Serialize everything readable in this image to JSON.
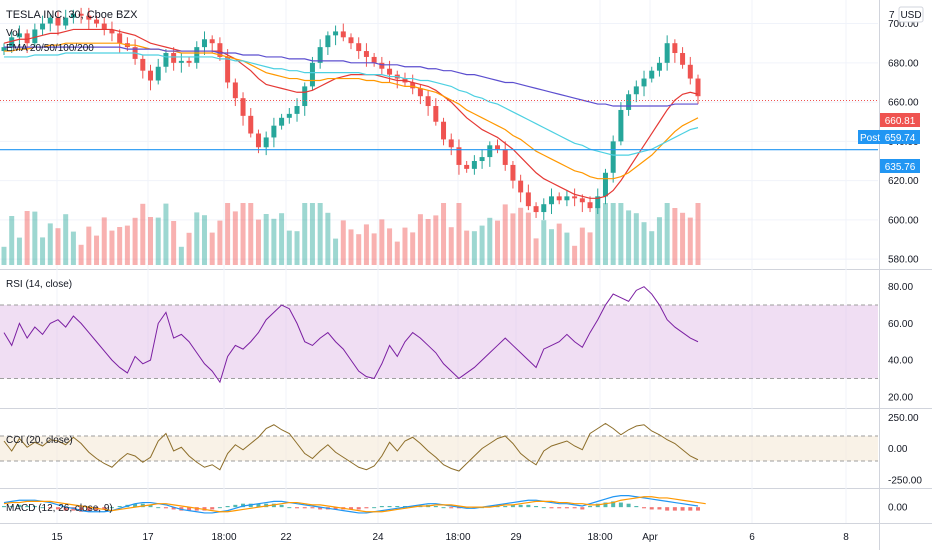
{
  "header": {
    "symbol_line": "TESLA INC, 30, Cboe BZX",
    "vol_label": "Vol",
    "ema_label": "EMA 20/50/100/200",
    "currency": "USD",
    "axis_top_partial": "7"
  },
  "panes": {
    "rsi_title": "RSI (14, close)",
    "cci_title": "CCI (20, close)",
    "macd_title": "MACD (12, 26, close, 9)"
  },
  "price_tags": {
    "last_price": "660.81",
    "post_label": "Post",
    "post_price": "659.74",
    "hline_price": "635.76"
  },
  "colors": {
    "up": "#26a69a",
    "down": "#ef5350",
    "ema20": "#e53935",
    "ema50": "#ff9800",
    "ema100": "#4dd0e1",
    "ema200": "#5c4fcf",
    "hline": "#2196f3",
    "rsi": "#7b1fa2",
    "rsi_band": "#e1bee7",
    "cci": "#8d6e2a",
    "cci_band": "#f3e5cf",
    "macd": "#2196f3",
    "signal": "#ff9800"
  },
  "chart_data": [
    {
      "type": "candlestick",
      "title": "TESLA INC, 30, Cboe BZX",
      "ylim": [
        575,
        712
      ],
      "y_ticks": [
        "580.00",
        "600.00",
        "620.00",
        "640.00",
        "660.00",
        "680.00",
        "700.00"
      ],
      "x_ticks": [
        "15",
        "17",
        "18:00",
        "22",
        "24",
        "18:00",
        "29",
        "18:00",
        "Apr",
        "6",
        "8"
      ],
      "price_close": [
        688,
        693,
        695,
        690,
        697,
        700,
        703,
        699,
        703,
        705,
        704,
        702,
        700,
        697,
        695,
        690,
        688,
        682,
        676,
        671,
        678,
        685,
        680,
        681,
        680,
        688,
        692,
        690,
        683,
        670,
        662,
        653,
        644,
        637,
        642,
        648,
        652,
        654,
        658,
        668,
        680,
        688,
        694,
        696,
        693,
        690,
        686,
        683,
        680,
        677,
        674,
        672,
        670,
        667,
        663,
        658,
        650,
        641,
        637,
        628,
        626,
        630,
        632,
        638,
        636,
        628,
        620,
        614,
        607,
        604,
        608,
        612,
        610,
        612,
        611,
        609,
        606,
        612,
        624,
        640,
        656,
        664,
        668,
        672,
        676,
        680,
        690,
        685,
        679,
        672,
        663
      ],
      "volume_note": "volume bars shown beneath price",
      "ema": {
        "ema20": [
          690,
          691,
          692,
          692,
          693,
          694,
          695,
          695,
          696,
          697,
          697,
          697,
          697,
          697,
          697,
          696,
          695,
          694,
          692,
          690,
          689,
          688,
          687,
          686,
          686,
          686,
          686,
          686,
          686,
          684,
          682,
          679,
          676,
          672,
          669,
          668,
          667,
          666,
          665,
          665,
          666,
          668,
          670,
          672,
          673,
          674,
          674,
          674,
          674,
          673,
          672,
          671,
          671,
          670,
          669,
          668,
          666,
          663,
          660,
          656,
          652,
          649,
          646,
          644,
          642,
          639,
          636,
          632,
          628,
          624,
          621,
          619,
          617,
          615,
          613,
          612,
          611,
          611,
          612,
          615,
          620,
          626,
          632,
          638,
          644,
          650,
          656,
          661,
          664,
          665,
          664
        ],
        "ema50": [
          686,
          686,
          687,
          687,
          688,
          688,
          689,
          689,
          690,
          690,
          690,
          690,
          690,
          690,
          690,
          690,
          689,
          689,
          688,
          687,
          687,
          686,
          686,
          685,
          685,
          685,
          685,
          685,
          684,
          683,
          682,
          681,
          679,
          677,
          675,
          674,
          673,
          672,
          672,
          671,
          671,
          671,
          672,
          672,
          672,
          672,
          672,
          671,
          671,
          670,
          670,
          669,
          668,
          668,
          667,
          666,
          665,
          663,
          661,
          659,
          656,
          654,
          652,
          650,
          648,
          646,
          643,
          641,
          638,
          635,
          633,
          631,
          629,
          627,
          625,
          624,
          622,
          621,
          621,
          621,
          622,
          624,
          627,
          630,
          633,
          637,
          641,
          645,
          648,
          650,
          652
        ],
        "ema100": [
          683,
          683,
          683,
          683,
          684,
          684,
          684,
          684,
          685,
          685,
          685,
          685,
          685,
          685,
          685,
          685,
          685,
          685,
          684,
          684,
          684,
          683,
          683,
          683,
          683,
          683,
          683,
          683,
          682,
          682,
          681,
          681,
          680,
          679,
          678,
          677,
          677,
          676,
          676,
          675,
          675,
          675,
          675,
          675,
          675,
          675,
          675,
          674,
          674,
          674,
          673,
          673,
          672,
          672,
          671,
          671,
          670,
          669,
          668,
          666,
          665,
          663,
          662,
          660,
          659,
          657,
          655,
          653,
          651,
          649,
          647,
          645,
          643,
          641,
          639,
          638,
          636,
          635,
          634,
          633,
          633,
          633,
          634,
          635,
          636,
          638,
          640,
          642,
          644,
          646,
          647
        ],
        "ema200": [
          688,
          688,
          688,
          688,
          688,
          688,
          688,
          688,
          688,
          688,
          688,
          688,
          688,
          688,
          688,
          688,
          687,
          687,
          687,
          687,
          687,
          686,
          686,
          686,
          686,
          686,
          686,
          686,
          685,
          685,
          685,
          684,
          684,
          684,
          683,
          683,
          683,
          682,
          682,
          682,
          681,
          681,
          681,
          681,
          681,
          680,
          680,
          680,
          680,
          679,
          679,
          679,
          678,
          678,
          678,
          677,
          677,
          676,
          676,
          675,
          674,
          674,
          673,
          672,
          671,
          670,
          670,
          669,
          668,
          667,
          666,
          665,
          664,
          663,
          662,
          661,
          660,
          659,
          659,
          658,
          658,
          658,
          658,
          658,
          658,
          658,
          658,
          659,
          659,
          659,
          659
        ]
      }
    },
    {
      "type": "line",
      "title": "RSI (14, close)",
      "ylim": [
        15,
        88
      ],
      "y_ticks": [
        "20.00",
        "40.00",
        "60.00",
        "80.00"
      ],
      "band": [
        30,
        70
      ],
      "values": [
        55,
        48,
        60,
        52,
        58,
        54,
        60,
        62,
        58,
        64,
        60,
        55,
        50,
        45,
        40,
        36,
        33,
        42,
        38,
        40,
        60,
        66,
        52,
        54,
        50,
        44,
        38,
        34,
        28,
        42,
        48,
        46,
        50,
        55,
        62,
        66,
        70,
        68,
        60,
        50,
        48,
        52,
        55,
        50,
        46,
        40,
        34,
        31,
        30,
        38,
        48,
        42,
        50,
        55,
        52,
        48,
        44,
        38,
        34,
        30,
        33,
        36,
        40,
        44,
        48,
        52,
        48,
        44,
        40,
        36,
        46,
        48,
        50,
        54,
        50,
        47,
        55,
        62,
        70,
        76,
        74,
        72,
        78,
        80,
        76,
        70,
        62,
        58,
        55,
        52,
        50
      ]
    },
    {
      "type": "line",
      "title": "CCI (20, close)",
      "ylim": [
        -300,
        300
      ],
      "y_ticks": [
        "-250.00",
        "0.00",
        "250.00"
      ],
      "band": [
        -100,
        100
      ],
      "values": [
        60,
        -20,
        80,
        10,
        50,
        20,
        70,
        60,
        30,
        90,
        40,
        -30,
        -80,
        -120,
        -150,
        -90,
        -40,
        -60,
        -110,
        -70,
        60,
        120,
        -20,
        10,
        -60,
        -110,
        -150,
        -130,
        -170,
        -40,
        30,
        -10,
        40,
        90,
        160,
        190,
        150,
        120,
        40,
        -40,
        -80,
        -20,
        30,
        -30,
        -70,
        -110,
        -150,
        -170,
        -140,
        -60,
        50,
        -20,
        60,
        90,
        40,
        -20,
        -70,
        -130,
        -160,
        -180,
        -120,
        -60,
        0,
        40,
        80,
        100,
        40,
        -40,
        -90,
        -130,
        -20,
        20,
        40,
        60,
        20,
        -10,
        120,
        160,
        200,
        160,
        110,
        150,
        180,
        190,
        140,
        110,
        70,
        40,
        -10,
        -60,
        -90
      ]
    },
    {
      "type": "line",
      "title": "MACD (12, 26, close, 9)",
      "ylim": [
        -12,
        14
      ],
      "y_ticks": [
        "0.00"
      ],
      "series": [
        {
          "name": "MACD",
          "values": [
            4,
            5,
            6,
            6,
            6,
            5,
            4,
            2,
            0,
            -1,
            -3,
            -4,
            -4,
            -4,
            -3,
            -1,
            1,
            3,
            4,
            4,
            3,
            2,
            0,
            -2,
            -3,
            -4,
            -5,
            -5,
            -4,
            -3,
            -1,
            1,
            2,
            3,
            4,
            5,
            5,
            4,
            3,
            2,
            1,
            0,
            -1,
            -2,
            -3,
            -4,
            -5,
            -5,
            -4,
            -3,
            -2,
            -1,
            0,
            1,
            2,
            3,
            3,
            2,
            1,
            0,
            -1,
            -1,
            0,
            1,
            2,
            3,
            4,
            5,
            6,
            6,
            5,
            4,
            3,
            3,
            2,
            1,
            3,
            5,
            7,
            9,
            10,
            10,
            9,
            8,
            7,
            6,
            5,
            4,
            3,
            2,
            1
          ]
        },
        {
          "name": "Signal",
          "values": [
            3,
            4,
            4,
            5,
            5,
            5,
            5,
            4,
            3,
            2,
            1,
            0,
            -1,
            -2,
            -3,
            -2,
            -1,
            0,
            1,
            2,
            3,
            3,
            2,
            1,
            0,
            -1,
            -2,
            -3,
            -4,
            -4,
            -3,
            -2,
            -1,
            0,
            1,
            2,
            3,
            4,
            4,
            3,
            2,
            2,
            1,
            0,
            -1,
            -2,
            -3,
            -4,
            -4,
            -4,
            -3,
            -2,
            -1,
            0,
            1,
            1,
            2,
            2,
            2,
            1,
            0,
            0,
            0,
            0,
            1,
            2,
            2,
            3,
            4,
            5,
            5,
            5,
            4,
            4,
            3,
            3,
            2,
            2,
            3,
            4,
            6,
            7,
            8,
            9,
            9,
            8,
            8,
            7,
            6,
            5,
            4,
            3
          ]
        }
      ]
    }
  ]
}
